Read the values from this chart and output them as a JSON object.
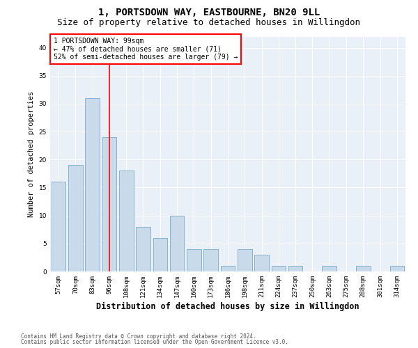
{
  "title1": "1, PORTSDOWN WAY, EASTBOURNE, BN20 9LL",
  "title2": "Size of property relative to detached houses in Willingdon",
  "xlabel": "Distribution of detached houses by size in Willingdon",
  "ylabel": "Number of detached properties",
  "categories": [
    "57sqm",
    "70sqm",
    "83sqm",
    "96sqm",
    "108sqm",
    "121sqm",
    "134sqm",
    "147sqm",
    "160sqm",
    "173sqm",
    "186sqm",
    "198sqm",
    "211sqm",
    "224sqm",
    "237sqm",
    "250sqm",
    "263sqm",
    "275sqm",
    "288sqm",
    "301sqm",
    "314sqm"
  ],
  "values": [
    16,
    19,
    31,
    24,
    18,
    8,
    6,
    10,
    4,
    4,
    1,
    4,
    3,
    1,
    1,
    0,
    1,
    0,
    1,
    0,
    1
  ],
  "bar_color": "#c9daea",
  "bar_edge_color": "#7aaac8",
  "vline_x": 3,
  "vline_color": "red",
  "annotation_line1": "1 PORTSDOWN WAY: 99sqm",
  "annotation_line2": "← 47% of detached houses are smaller (71)",
  "annotation_line3": "52% of semi-detached houses are larger (79) →",
  "ylim": [
    0,
    42
  ],
  "yticks": [
    0,
    5,
    10,
    15,
    20,
    25,
    30,
    35,
    40
  ],
  "background_color": "#eaf0f8",
  "footer1": "Contains HM Land Registry data © Crown copyright and database right 2024.",
  "footer2": "Contains public sector information licensed under the Open Government Licence v3.0.",
  "title_fontsize": 10,
  "subtitle_fontsize": 9,
  "xlabel_fontsize": 8.5,
  "ylabel_fontsize": 7.5,
  "tick_fontsize": 6.5,
  "ann_fontsize": 7,
  "footer_fontsize": 5.5
}
